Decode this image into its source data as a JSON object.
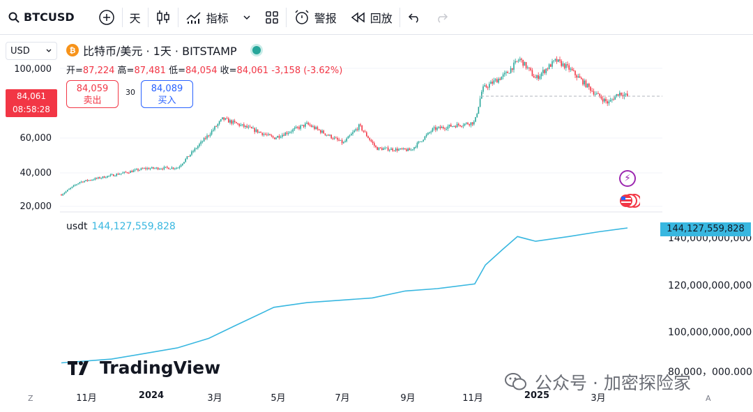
{
  "toolbar": {
    "symbol": "BTCUSD",
    "interval": "天",
    "indicators_label": "指标",
    "alert_label": "警报",
    "replay_label": "回放"
  },
  "currency": {
    "value": "USD"
  },
  "legend": {
    "title": "比特币/美元 · 1天 · BITSTAMP",
    "coin_glyph": "₿",
    "open_label": "开=",
    "open": "87,224",
    "high_label": "高=",
    "high": "87,481",
    "low_label": "低=",
    "low": "84,054",
    "close_label": "收=",
    "close": "84,061",
    "change": "-3,158 (-3.62%)"
  },
  "trade": {
    "sell_price": "84,059",
    "sell_label": "卖出",
    "spread": "30",
    "buy_price": "84,089",
    "buy_label": "买入"
  },
  "price_tag": {
    "price": "84,061",
    "countdown": "08:58:28"
  },
  "left_axis": [
    "100,000",
    "60,000",
    "40,000",
    "20,000"
  ],
  "usdt": {
    "label": "usdt",
    "value": "144,127,559,828"
  },
  "right_axis": [
    "140,000,000,000",
    "120,000,000,000",
    "100,000,000,000",
    "80,000，000.000"
  ],
  "x_axis": [
    "11月",
    "2024",
    "3月",
    "5月",
    "7月",
    "9月",
    "11月",
    "2025",
    "3月"
  ],
  "corner_left": "Z",
  "corner_right": "A",
  "logo_text": "TradingView",
  "watermark": "公众号 · 加密探险家",
  "colors": {
    "up": "#26a69a",
    "down": "#f23645",
    "usdt": "#38b7e0"
  },
  "chart_data": [
    {
      "type": "candlestick",
      "title": "比特币/美元 · 1天 · BITSTAMP",
      "x": [
        "2023-10-15",
        "2023-11-01",
        "2023-12-01",
        "2024-01-01",
        "2024-02-01",
        "2024-03-01",
        "2024-03-14",
        "2024-04-15",
        "2024-05-01",
        "2024-06-01",
        "2024-07-05",
        "2024-07-20",
        "2024-08-05",
        "2024-09-06",
        "2024-09-27",
        "2024-10-15",
        "2024-11-05",
        "2024-11-12",
        "2024-12-05",
        "2024-12-17",
        "2025-01-01",
        "2025-01-20",
        "2025-02-01",
        "2025-02-25",
        "2025-03-10",
        "2025-03-20",
        "2025-03-28"
      ],
      "close": [
        27000,
        34500,
        38500,
        42500,
        43000,
        62000,
        71000,
        64000,
        60000,
        68000,
        57000,
        67000,
        54000,
        53000,
        65000,
        67000,
        69000,
        88000,
        97000,
        106000,
        94000,
        105000,
        100000,
        86000,
        80000,
        86000,
        84061
      ],
      "ylim": [
        20000,
        108000
      ]
    },
    {
      "type": "line",
      "name": "usdt",
      "x": [
        "2023-10-15",
        "2023-12-01",
        "2024-01-01",
        "2024-02-01",
        "2024-03-01",
        "2024-03-25",
        "2024-05-01",
        "2024-06-01",
        "2024-07-01",
        "2024-08-01",
        "2024-09-01",
        "2024-10-01",
        "2024-11-05",
        "2024-11-15",
        "2024-12-01",
        "2024-12-15",
        "2025-01-01",
        "2025-02-01",
        "2025-03-01",
        "2025-03-28"
      ],
      "values": [
        83.5,
        85.5,
        88.5,
        91.5,
        96.5,
        102.5,
        110.5,
        112.5,
        113.5,
        114.5,
        117.5,
        118.5,
        120.5,
        128.5,
        135.0,
        140.5,
        138.5,
        140.5,
        142.5,
        144.13
      ],
      "unit": "billion USD",
      "ylim": [
        80,
        145
      ]
    }
  ]
}
